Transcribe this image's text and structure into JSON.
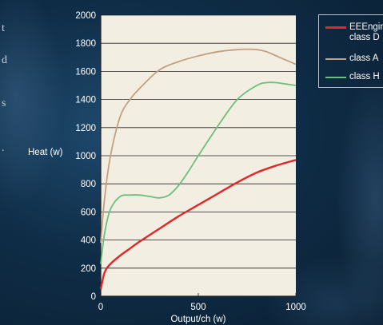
{
  "side_fragments": [
    "t",
    "d",
    "s",
    "."
  ],
  "chart_data": {
    "type": "line",
    "xlabel": "Output/ch (w)",
    "ylabel": "Heat (w)",
    "xlim": [
      0,
      1000
    ],
    "ylim": [
      0,
      2000
    ],
    "xticks": [
      "0",
      "500",
      "1000"
    ],
    "yticks": [
      "0",
      "200",
      "400",
      "600",
      "800",
      "1000",
      "1200",
      "1400",
      "1600",
      "1800",
      "2000"
    ],
    "grid": "horizontal",
    "background": "#f2eee2",
    "legend": [
      "EEEngine",
      "class D",
      "class A",
      "class H"
    ],
    "series": [
      {
        "name": "EEEngine class D",
        "color": "#e0282b",
        "x": [
          0,
          20,
          50,
          100,
          150,
          200,
          300,
          400,
          500,
          600,
          700,
          800,
          900,
          1000
        ],
        "y": [
          50,
          170,
          230,
          290,
          340,
          390,
          480,
          570,
          650,
          730,
          810,
          880,
          930,
          970
        ]
      },
      {
        "name": "class A",
        "color": "#c3a07f",
        "x": [
          0,
          20,
          50,
          100,
          150,
          200,
          300,
          400,
          500,
          600,
          700,
          750,
          800,
          850,
          900,
          950,
          1000
        ],
        "y": [
          380,
          700,
          1000,
          1280,
          1400,
          1480,
          1610,
          1670,
          1710,
          1740,
          1755,
          1758,
          1755,
          1740,
          1710,
          1680,
          1650
        ]
      },
      {
        "name": "class H",
        "color": "#6dbf7e",
        "x": [
          0,
          20,
          50,
          100,
          150,
          200,
          250,
          300,
          350,
          400,
          450,
          500,
          600,
          700,
          800,
          850,
          900,
          950,
          1000
        ],
        "y": [
          230,
          450,
          620,
          710,
          720,
          720,
          710,
          700,
          720,
          790,
          890,
          1000,
          1210,
          1400,
          1500,
          1520,
          1520,
          1510,
          1500
        ]
      }
    ]
  }
}
